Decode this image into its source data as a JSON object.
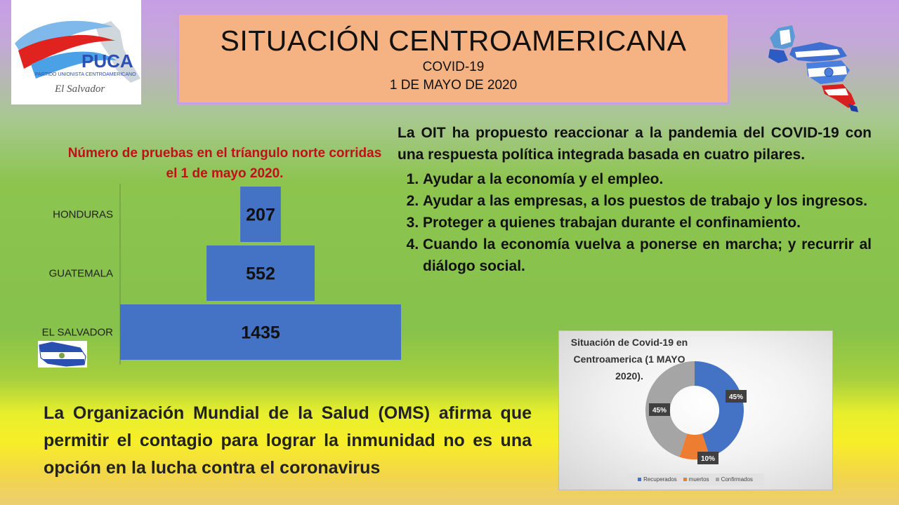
{
  "header": {
    "title": "SITUACIÓN CENTROAMERICANA",
    "subtitle": "COVID-19",
    "date": "1 DE MAYO DE 2020"
  },
  "logo": {
    "brand": "PUCA",
    "party": "PARTIDO UNIONISTA CENTROAMERICANO",
    "country": "El Salvador"
  },
  "oit": {
    "intro": "La OIT ha propuesto reaccionar a la pandemia del COVID-19 con una respuesta política integrada basada en cuatro pilares.",
    "items": [
      "Ayudar a la economía y el empleo.",
      "Ayudar a las empresas, a los puestos de trabajo y los ingresos.",
      "Proteger a quienes trabajan durante el confinamiento.",
      "Cuando la economía vuelva a ponerse en marcha; y recurrir al diálogo social."
    ]
  },
  "oms": {
    "text": "La Organización Mundial de la Salud (OMS) afirma que permitir el contagio para lograr la inmunidad no es una opción en la lucha contra el coronavirus"
  },
  "colors": {
    "bar": "#4472c4",
    "recuperados": "#4472c4",
    "muertos": "#ed7d31",
    "confirmados": "#a5a5a5",
    "chart_title": "#c0101a"
  },
  "chart_data": [
    {
      "type": "bar",
      "orientation": "horizontal",
      "title": "Número de pruebas en el tríangulo norte corridas el 1 de mayo 2020.",
      "categories": [
        "HONDURAS",
        "GUATEMALA",
        "EL SALVADOR"
      ],
      "values": [
        207,
        552,
        1435
      ],
      "xlim": [
        0,
        1435
      ],
      "data_labels": true,
      "grid": false,
      "legend": "none"
    },
    {
      "type": "pie",
      "variant": "doughnut",
      "title": "Situación de Covid-19 en Centroamerica (1 MAYO 2020).",
      "categories": [
        "Recuperados",
        "muertos",
        "Confirmados"
      ],
      "values": [
        45,
        10,
        45
      ],
      "data_labels": [
        "45%",
        "10%",
        "45%"
      ],
      "legend": "bottom"
    }
  ]
}
